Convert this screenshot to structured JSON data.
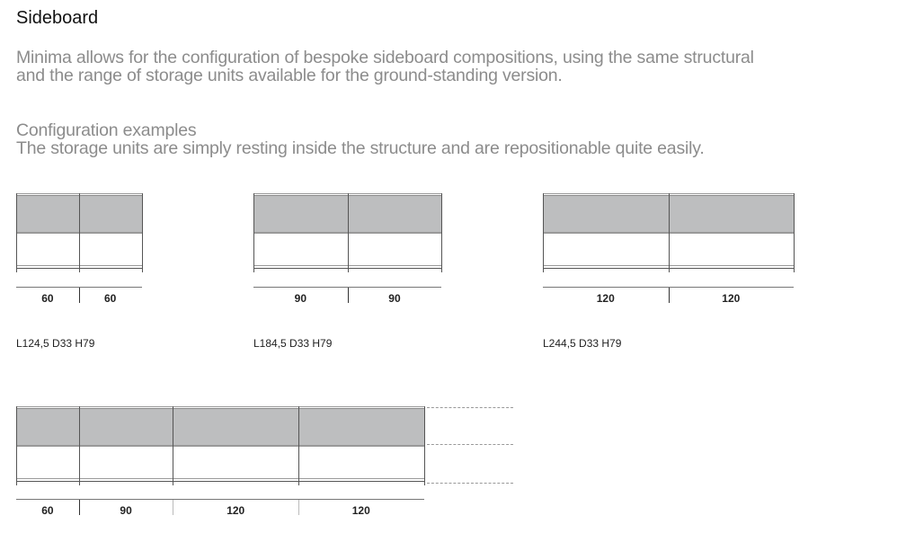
{
  "title": "Sideboard",
  "intro": [
    "Minima allows for the configuration of bespoke sideboard compositions, using the same structural",
    "and the range of storage units available for the ground-standing version."
  ],
  "examples_heading": "Configuration examples",
  "examples_text": "The storage units are simply resting inside the structure and are repositionable quite easily.",
  "configurations": [
    {
      "widths": [
        60,
        60
      ],
      "labels": [
        "60",
        "60"
      ],
      "spec": "L124,5 D33 H79"
    },
    {
      "widths": [
        90,
        90
      ],
      "labels": [
        "90",
        "90"
      ],
      "spec": "L184,5 D33 H79"
    },
    {
      "widths": [
        120,
        120
      ],
      "labels": [
        "120",
        "120"
      ],
      "spec": "L244,5 D33 H79"
    },
    {
      "widths": [
        60,
        90,
        120,
        120
      ],
      "labels": [
        "60",
        "90",
        "120",
        "120"
      ],
      "spec": "",
      "extendable": true
    }
  ],
  "colors": {
    "unit_fill": "#bdbebf",
    "text_gray": "#8c8c8c"
  }
}
